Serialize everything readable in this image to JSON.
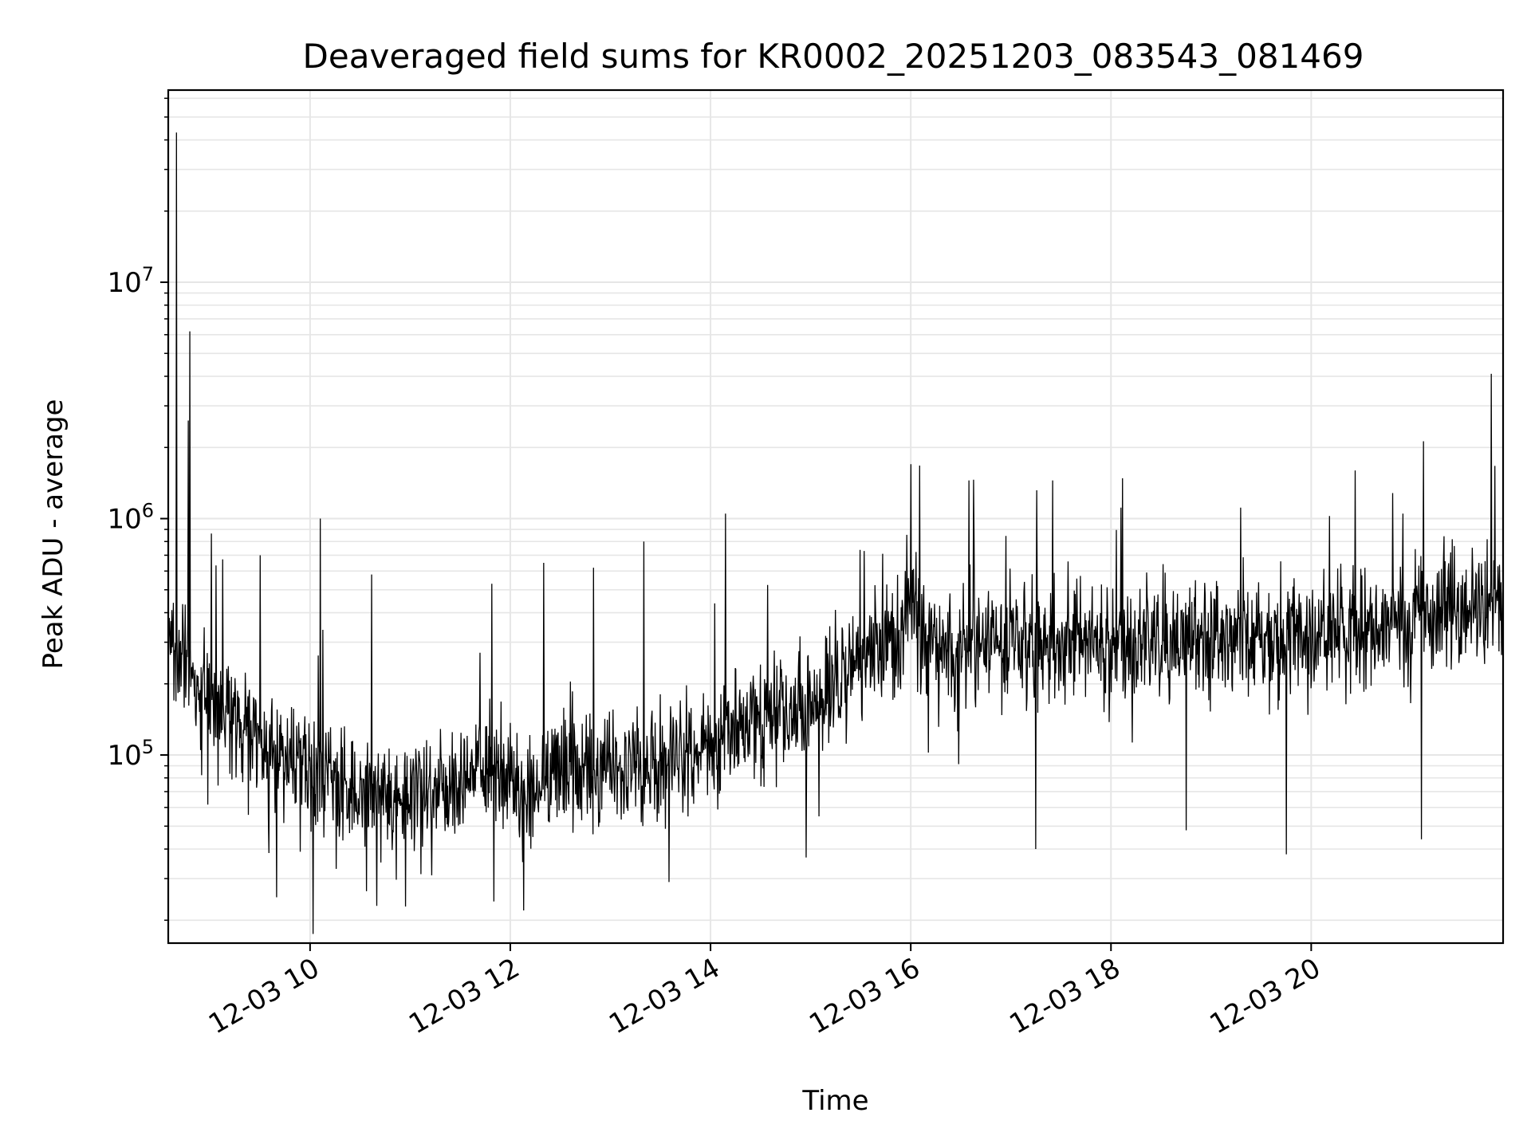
{
  "chart_data": {
    "type": "line",
    "title": "Deaveraged field sums for KR0002_20251203_083543_081469",
    "xlabel": "Time",
    "ylabel": "Peak ADU - average",
    "yscale": "log",
    "xlim": [
      "2025-12-03 08:35",
      "2025-12-03 21:55"
    ],
    "ylim": [
      16000,
      65000000
    ],
    "grid": true,
    "line_color": "#000000",
    "x_ticks": [
      {
        "t": "2025-12-03 10:00",
        "label": "12-03 10"
      },
      {
        "t": "2025-12-03 12:00",
        "label": "12-03 12"
      },
      {
        "t": "2025-12-03 14:00",
        "label": "12-03 14"
      },
      {
        "t": "2025-12-03 16:00",
        "label": "12-03 16"
      },
      {
        "t": "2025-12-03 18:00",
        "label": "12-03 18"
      },
      {
        "t": "2025-12-03 20:00",
        "label": "12-03 20"
      }
    ],
    "y_ticks": [
      {
        "value": 100000,
        "base": "10",
        "exp": "5"
      },
      {
        "value": 1000000,
        "base": "10",
        "exp": "6"
      },
      {
        "value": 10000000,
        "base": "10",
        "exp": "7"
      }
    ],
    "trend": [
      {
        "t": "2025-12-03 08:35",
        "y": 300000
      },
      {
        "t": "2025-12-03 08:55",
        "y": 180000
      },
      {
        "t": "2025-12-03 09:30",
        "y": 110000
      },
      {
        "t": "2025-12-03 10:00",
        "y": 85000
      },
      {
        "t": "2025-12-03 10:30",
        "y": 75000
      },
      {
        "t": "2025-12-03 11:00",
        "y": 68000
      },
      {
        "t": "2025-12-03 11:30",
        "y": 75000
      },
      {
        "t": "2025-12-03 11:55",
        "y": 90000
      },
      {
        "t": "2025-12-03 12:05",
        "y": 65000
      },
      {
        "t": "2025-12-03 12:30",
        "y": 85000
      },
      {
        "t": "2025-12-03 13:00",
        "y": 85000
      },
      {
        "t": "2025-12-03 13:30",
        "y": 90000
      },
      {
        "t": "2025-12-03 14:00",
        "y": 110000
      },
      {
        "t": "2025-12-03 14:30",
        "y": 140000
      },
      {
        "t": "2025-12-03 15:00",
        "y": 170000
      },
      {
        "t": "2025-12-03 15:20",
        "y": 230000
      },
      {
        "t": "2025-12-03 15:50",
        "y": 300000
      },
      {
        "t": "2025-12-03 16:00",
        "y": 450000
      },
      {
        "t": "2025-12-03 16:15",
        "y": 280000
      },
      {
        "t": "2025-12-03 17:00",
        "y": 300000
      },
      {
        "t": "2025-12-03 18:00",
        "y": 300000
      },
      {
        "t": "2025-12-03 19:00",
        "y": 320000
      },
      {
        "t": "2025-12-03 20:00",
        "y": 330000
      },
      {
        "t": "2025-12-03 21:00",
        "y": 380000
      },
      {
        "t": "2025-12-03 21:40",
        "y": 420000
      },
      {
        "t": "2025-12-03 21:55",
        "y": 450000
      }
    ],
    "spikes": [
      {
        "t": "2025-12-03 08:40",
        "y": 43000000
      },
      {
        "t": "2025-12-03 08:48",
        "y": 6200000
      },
      {
        "t": "2025-12-03 08:47",
        "y": 2600000
      },
      {
        "t": "2025-12-03 10:06",
        "y": 1000000
      },
      {
        "t": "2025-12-03 09:30",
        "y": 700000
      },
      {
        "t": "2025-12-03 10:37",
        "y": 580000
      },
      {
        "t": "2025-12-03 12:20",
        "y": 650000
      },
      {
        "t": "2025-12-03 12:50",
        "y": 620000
      },
      {
        "t": "2025-12-03 13:20",
        "y": 800000
      },
      {
        "t": "2025-12-03 14:09",
        "y": 1050000
      },
      {
        "t": "2025-12-03 16:00",
        "y": 1700000
      },
      {
        "t": "2025-12-03 16:35",
        "y": 1450000
      },
      {
        "t": "2025-12-03 17:25",
        "y": 1450000
      },
      {
        "t": "2025-12-03 20:55",
        "y": 1050000
      },
      {
        "t": "2025-12-03 21:48",
        "y": 4100000
      }
    ],
    "dips": [
      {
        "t": "2025-12-03 09:40",
        "y": 25000
      },
      {
        "t": "2025-12-03 10:40",
        "y": 23000
      },
      {
        "t": "2025-12-03 11:50",
        "y": 24000
      },
      {
        "t": "2025-12-03 12:08",
        "y": 22000
      },
      {
        "t": "2025-12-03 13:35",
        "y": 29000
      },
      {
        "t": "2025-12-03 15:05",
        "y": 55000
      },
      {
        "t": "2025-12-03 17:15",
        "y": 40000
      },
      {
        "t": "2025-12-03 18:45",
        "y": 48000
      },
      {
        "t": "2025-12-03 19:45",
        "y": 38000
      },
      {
        "t": "2025-12-03 21:06",
        "y": 44000
      }
    ]
  }
}
